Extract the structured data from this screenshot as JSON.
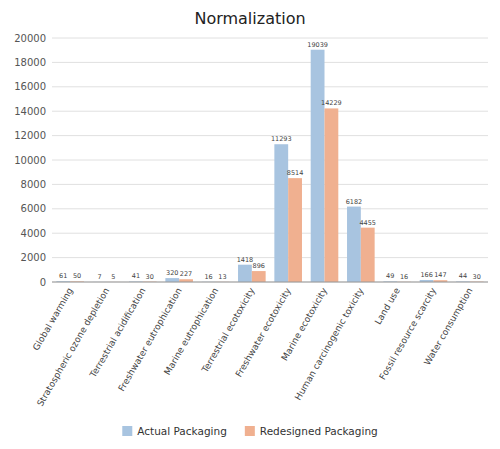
{
  "chart_data": {
    "type": "bar",
    "title": "Normalization",
    "categories": [
      "Global warming",
      "Stratospheric ozone depletion",
      "Terrestrial acidification",
      "Freshwater eutrophication",
      "Marine eutrophication",
      "Terrestrial ecotoxicity",
      "Freshwater ecotoxicity",
      "Marine ecotoxicity",
      "Human carcinogenic toxicity",
      "Land use",
      "Fossil resource scarcity",
      "Water consumption"
    ],
    "series": [
      {
        "name": "Actual Packaging",
        "color": "#a8c4e0",
        "values": [
          61,
          7,
          41,
          320,
          16,
          1418,
          11293,
          19039,
          6182,
          49,
          166,
          44
        ]
      },
      {
        "name": "Redesigned Packaging",
        "color": "#f0b090",
        "values": [
          50,
          5,
          30,
          227,
          13,
          896,
          8514,
          14229,
          4455,
          16,
          147,
          30
        ]
      }
    ],
    "ylim": [
      0,
      20000
    ],
    "yticks": [
      0,
      2000,
      4000,
      6000,
      8000,
      10000,
      12000,
      14000,
      16000,
      18000,
      20000
    ],
    "grid": true,
    "data_labels": true,
    "legend": "bottom"
  }
}
